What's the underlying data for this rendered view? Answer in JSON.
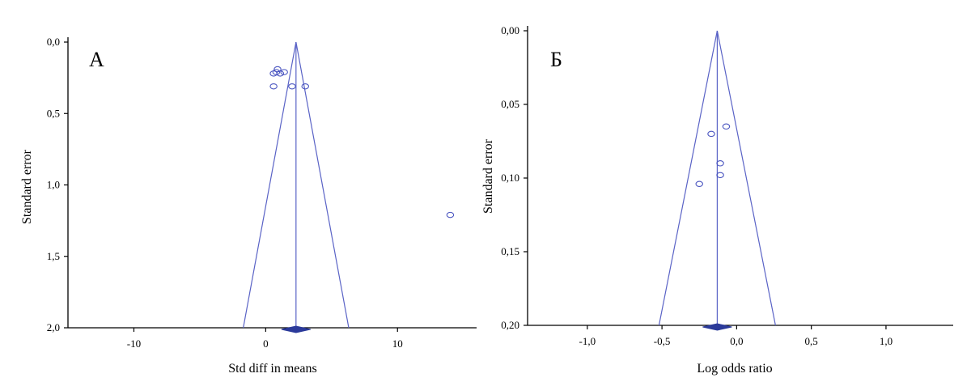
{
  "chart_data": [
    {
      "type": "scatter",
      "panel_label": "А",
      "xlabel": "Std diff in means",
      "ylabel": "Standard error",
      "xlim": [
        -15,
        16
      ],
      "ylim": [
        2.0,
        0.0
      ],
      "y_inverted": true,
      "x_ticks": [
        -10,
        0,
        10
      ],
      "x_tick_labels": [
        "-10",
        "0",
        "10"
      ],
      "y_ticks": [
        0.0,
        0.5,
        1.0,
        1.5,
        2.0
      ],
      "y_tick_labels": [
        "0,0",
        "0,5",
        "1,0",
        "1,5",
        "2,0"
      ],
      "pooled_estimate": 2.3,
      "funnel_ci_at_max_se": [
        -1.7,
        6.3
      ],
      "points": [
        {
          "x": 0.9,
          "y": 0.19
        },
        {
          "x": 0.8,
          "y": 0.21
        },
        {
          "x": 1.4,
          "y": 0.21
        },
        {
          "x": 0.6,
          "y": 0.22
        },
        {
          "x": 1.1,
          "y": 0.22
        },
        {
          "x": 0.6,
          "y": 0.31
        },
        {
          "x": 2.0,
          "y": 0.31
        },
        {
          "x": 3.0,
          "y": 0.31
        },
        {
          "x": 14.0,
          "y": 1.21
        }
      ]
    },
    {
      "type": "scatter",
      "panel_label": "Б",
      "xlabel": "Log odds ratio",
      "ylabel": "Standard error",
      "xlim": [
        -1.4,
        1.45
      ],
      "ylim": [
        0.2,
        0.0
      ],
      "y_inverted": true,
      "x_ticks": [
        -1.0,
        -0.5,
        0.0,
        0.5,
        1.0
      ],
      "x_tick_labels": [
        "-1,0",
        "-0,5",
        "0,0",
        "0,5",
        "1,0"
      ],
      "y_ticks": [
        0.0,
        0.05,
        0.1,
        0.15,
        0.2
      ],
      "y_tick_labels": [
        "0,00",
        "0,05",
        "0,10",
        "0,15",
        "0,20"
      ],
      "pooled_estimate": -0.13,
      "funnel_ci_at_max_se": [
        -0.52,
        0.26
      ],
      "points": [
        {
          "x": -0.07,
          "y": 0.065
        },
        {
          "x": -0.17,
          "y": 0.07
        },
        {
          "x": -0.11,
          "y": 0.09
        },
        {
          "x": -0.11,
          "y": 0.098
        },
        {
          "x": -0.25,
          "y": 0.104
        }
      ]
    }
  ]
}
